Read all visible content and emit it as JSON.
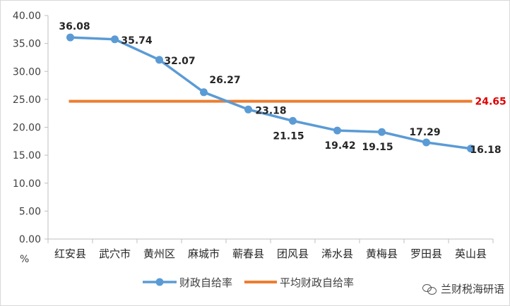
{
  "chart_data": {
    "type": "line",
    "categories": [
      "红安县",
      "武穴市",
      "黄州区",
      "麻城市",
      "蕲春县",
      "团风县",
      "浠水县",
      "黄梅县",
      "罗田县",
      "英山县"
    ],
    "series": [
      {
        "name": "财政自给率",
        "values": [
          36.08,
          35.74,
          32.07,
          26.27,
          23.18,
          21.15,
          19.42,
          19.15,
          17.29,
          16.18
        ],
        "labels": [
          "36.08",
          "35.74",
          "32.07",
          "26.27",
          "23.18",
          "21.15",
          "19.42",
          "19.15",
          "17.29",
          "16.18"
        ],
        "color": "#5b9bd5"
      },
      {
        "name": "平均财政自给率",
        "value": 24.65,
        "label": "24.65",
        "color": "#ed7d31",
        "label_color": "#e00000"
      }
    ],
    "ylim": [
      0,
      40
    ],
    "yticks": [
      "0.00",
      "5.00",
      "10.00",
      "15.00",
      "20.00",
      "25.00",
      "30.00",
      "35.00",
      "40.00"
    ],
    "ylabel": "%",
    "xlabel": "",
    "title": "",
    "grid": false,
    "legend_position": "bottom"
  },
  "watermark": {
    "text": "兰财税海研语",
    "icon": "wechat-icon"
  }
}
